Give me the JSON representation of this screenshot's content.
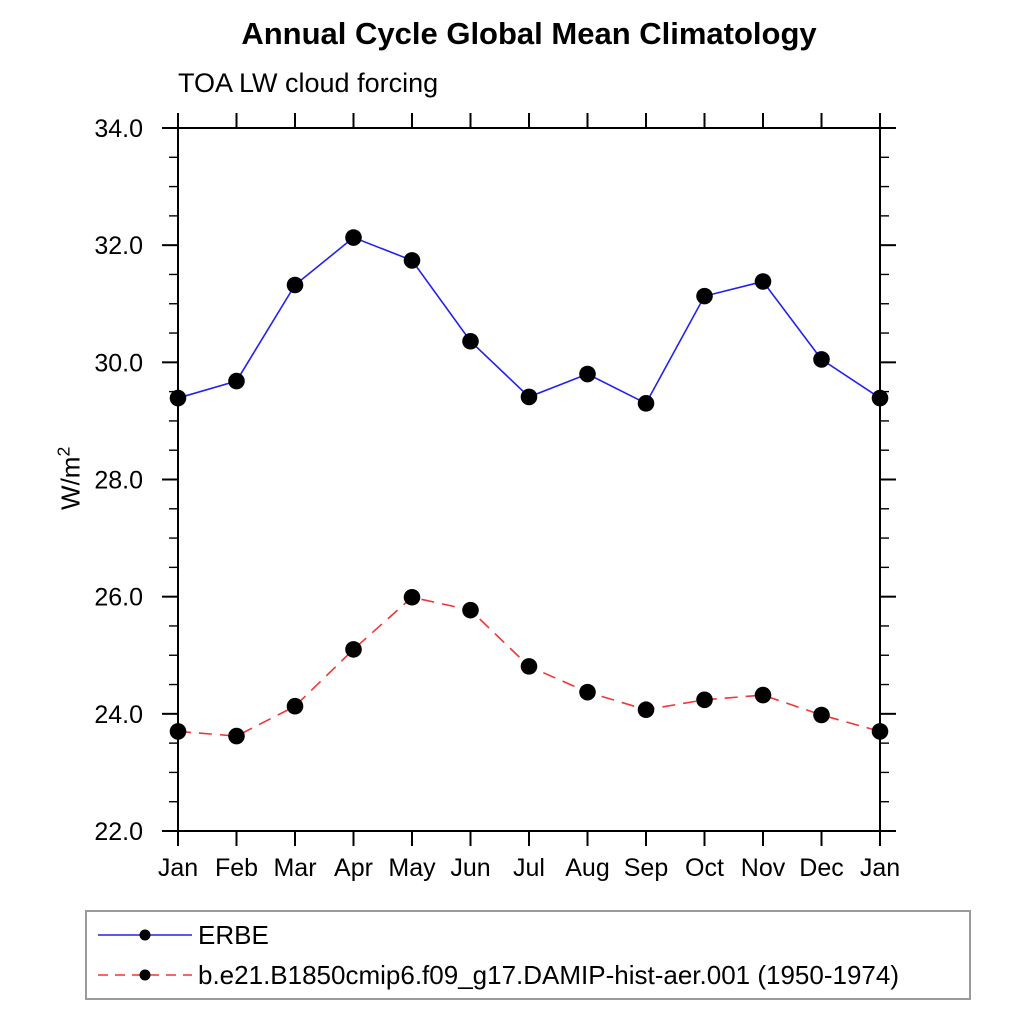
{
  "title": "Annual Cycle Global Mean Climatology",
  "subtitle": "TOA LW cloud forcing",
  "ylabel_display": {
    "base": "W/m",
    "sup": "2"
  },
  "colors": {
    "erbe_line": "#2222ee",
    "model_line": "#f33434",
    "marker": "#000000",
    "axis": "#000000",
    "legend_border": "#9a9a9a"
  },
  "chart_data": {
    "type": "line",
    "title": "Annual Cycle Global Mean Climatology",
    "subtitle": "TOA LW cloud forcing",
    "xlabel": "",
    "ylabel": "W/m²",
    "categories": [
      "Jan",
      "Feb",
      "Mar",
      "Apr",
      "May",
      "Jun",
      "Jul",
      "Aug",
      "Sep",
      "Oct",
      "Nov",
      "Dec",
      "Jan"
    ],
    "ylim": [
      22.0,
      34.0
    ],
    "ytick_major_labels": [
      "22.0",
      "24.0",
      "26.0",
      "28.0",
      "30.0",
      "32.0",
      "34.0"
    ],
    "ytick_minor_step": 0.5,
    "grid": false,
    "legend_position": "bottom-left-box",
    "series": [
      {
        "name": "ERBE",
        "style": "solid",
        "color": "#2222ee",
        "marker": "circle",
        "marker_color": "#000000",
        "values": [
          29.39,
          29.68,
          31.32,
          32.13,
          31.74,
          30.36,
          29.41,
          29.8,
          29.3,
          31.13,
          31.38,
          30.05,
          29.39
        ]
      },
      {
        "name": "b.e21.B1850cmip6.f09_g17.DAMIP-hist-aer.001 (1950-1974)",
        "style": "dashed",
        "color": "#f33434",
        "marker": "circle",
        "marker_color": "#000000",
        "values": [
          23.7,
          23.62,
          24.13,
          25.1,
          25.99,
          25.77,
          24.81,
          24.37,
          24.07,
          24.24,
          24.32,
          23.98,
          23.7
        ]
      }
    ]
  }
}
